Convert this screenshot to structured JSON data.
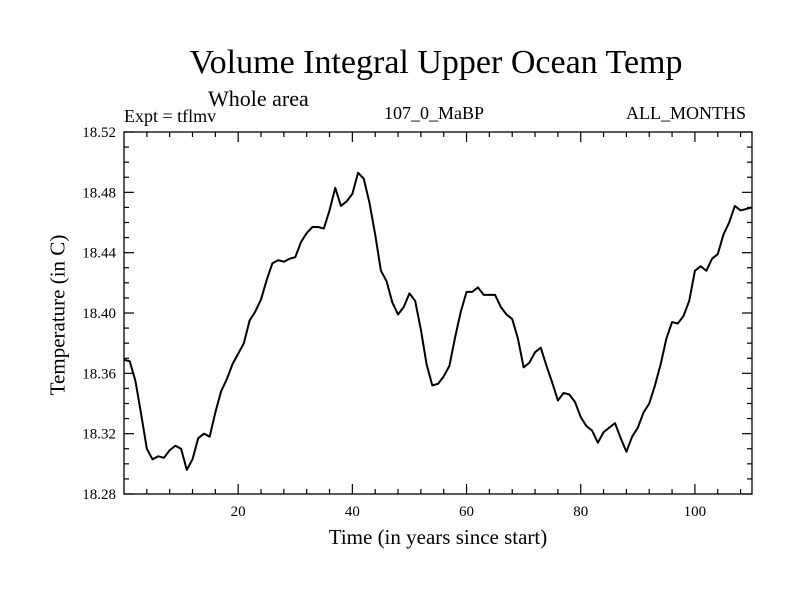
{
  "chart_data": {
    "type": "line",
    "title": "Volume Integral Upper Ocean Temp",
    "subtitle": "Whole area",
    "left_label": "Expt = tflmv",
    "center_label": "107_0_MaBP",
    "right_label": "ALL_MONTHS",
    "xlabel": "Time (in years since start)",
    "ylabel": "Temperature (in C)",
    "xlim": [
      0,
      110
    ],
    "ylim": [
      18.28,
      18.52
    ],
    "xticks": [
      20,
      40,
      60,
      80,
      100
    ],
    "yticks": [
      "18.52",
      "18.48",
      "18.44",
      "18.40",
      "18.36",
      "18.32",
      "18.28"
    ],
    "grid": false,
    "series": [
      {
        "name": "Volume Integral Upper Ocean Temp",
        "x": [
          0,
          1,
          2,
          3,
          4,
          5,
          6,
          7,
          8,
          9,
          10,
          11,
          12,
          13,
          14,
          15,
          16,
          17,
          18,
          19,
          20,
          21,
          22,
          23,
          24,
          25,
          26,
          27,
          28,
          29,
          30,
          31,
          32,
          33,
          34,
          35,
          36,
          37,
          38,
          39,
          40,
          41,
          42,
          43,
          44,
          45,
          46,
          47,
          48,
          49,
          50,
          51,
          52,
          53,
          54,
          55,
          56,
          57,
          58,
          59,
          60,
          61,
          62,
          63,
          64,
          65,
          66,
          67,
          68,
          69,
          70,
          71,
          72,
          73,
          74,
          75,
          76,
          77,
          78,
          79,
          80,
          81,
          82,
          83,
          84,
          85,
          86,
          87,
          88,
          89,
          90,
          91,
          92,
          93,
          94,
          95,
          96,
          97,
          98,
          99,
          100,
          101,
          102,
          103,
          104,
          105,
          106,
          107,
          108,
          109,
          110
        ],
        "values": [
          18.369,
          18.368,
          18.355,
          18.333,
          18.31,
          18.303,
          18.305,
          18.304,
          18.309,
          18.312,
          18.31,
          18.296,
          18.303,
          18.317,
          18.32,
          18.318,
          18.334,
          18.348,
          18.356,
          18.366,
          18.373,
          18.38,
          18.395,
          18.401,
          18.409,
          18.422,
          18.433,
          18.435,
          18.434,
          18.436,
          18.437,
          18.447,
          18.453,
          18.457,
          18.457,
          18.456,
          18.468,
          18.483,
          18.471,
          18.474,
          18.479,
          18.493,
          18.489,
          18.473,
          18.452,
          18.428,
          18.421,
          18.407,
          18.399,
          18.404,
          18.413,
          18.408,
          18.389,
          18.366,
          18.352,
          18.353,
          18.358,
          18.365,
          18.384,
          18.401,
          18.414,
          18.414,
          18.417,
          18.412,
          18.412,
          18.412,
          18.404,
          18.399,
          18.396,
          18.383,
          18.364,
          18.367,
          18.374,
          18.377,
          18.365,
          18.354,
          18.342,
          18.347,
          18.346,
          18.341,
          18.331,
          18.325,
          18.322,
          18.314,
          18.321,
          18.324,
          18.327,
          18.317,
          18.308,
          18.318,
          18.324,
          18.334,
          18.34,
          18.352,
          18.366,
          18.383,
          18.394,
          18.393,
          18.398,
          18.408,
          18.428,
          18.431,
          18.428,
          18.436,
          18.439,
          18.452,
          18.46,
          18.471,
          18.468,
          18.469,
          18.47
        ]
      }
    ]
  }
}
